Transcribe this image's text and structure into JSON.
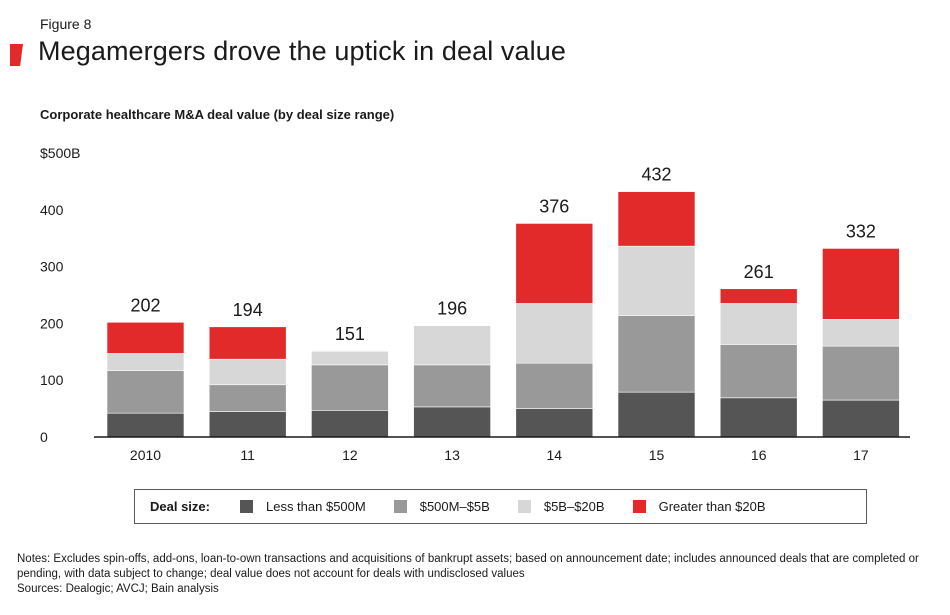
{
  "figure_label": "Figure 8",
  "title": "Megamergers drove the uptick in deal value",
  "colors": {
    "less_than_500m": "#555555",
    "500m_5b": "#999999",
    "5b_20b": "#d7d7d7",
    "greater_than_20b": "#e32a2a",
    "accent": "#e32a2a"
  },
  "chart_data": {
    "type": "bar",
    "stacked": true,
    "title": "Corporate healthcare M&A deal value (by deal size range)",
    "xlabel": "",
    "ylabel": "",
    "y_ticks": [
      "0",
      "100",
      "200",
      "300",
      "400",
      "$500B"
    ],
    "ylim": [
      0,
      500
    ],
    "categories": [
      "2010",
      "11",
      "12",
      "13",
      "14",
      "15",
      "16",
      "17"
    ],
    "totals": [
      202,
      194,
      151,
      196,
      376,
      432,
      261,
      332
    ],
    "series": [
      {
        "name": "Less than $500M",
        "color_key": "less_than_500m",
        "values": [
          42,
          45,
          47,
          53,
          50,
          79,
          69,
          65
        ]
      },
      {
        "name": "$500M–$5B",
        "color_key": "500m_5b",
        "values": [
          75,
          47,
          80,
          74,
          80,
          135,
          94,
          95
        ]
      },
      {
        "name": "$5B–$20B",
        "color_key": "5b_20b",
        "values": [
          30,
          45,
          24,
          69,
          105,
          122,
          72,
          47
        ]
      },
      {
        "name": "Greater than $20B",
        "color_key": "greater_than_20b",
        "values": [
          55,
          57,
          0,
          0,
          141,
          96,
          26,
          125
        ]
      }
    ]
  },
  "legend": {
    "title": "Deal size:",
    "items": [
      {
        "label": "Less than $500M",
        "color_key": "less_than_500m"
      },
      {
        "label": "$500M–$5B",
        "color_key": "500m_5b"
      },
      {
        "label": "$5B–$20B",
        "color_key": "5b_20b"
      },
      {
        "label": "Greater than $20B",
        "color_key": "greater_than_20b"
      }
    ]
  },
  "notes": {
    "line1": "Notes: Excludes spin-offs, add-ons, loan-to-own transactions and acquisitions of bankrupt assets; based on announcement date; includes announced deals that are completed or",
    "line2": "pending, with data subject to change; deal value does not account for deals with undisclosed values",
    "sources": "Sources: Dealogic; AVCJ; Bain analysis"
  }
}
